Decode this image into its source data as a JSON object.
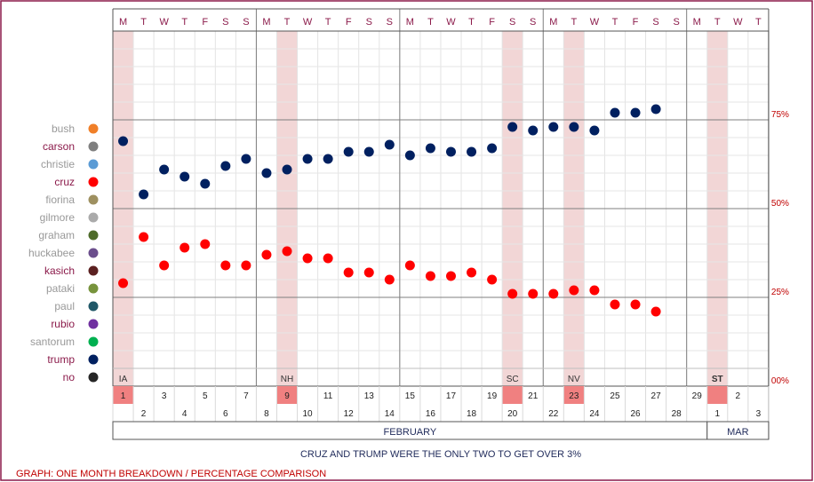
{
  "chart_data": {
    "type": "scatter",
    "title": "",
    "footer_caption": "GRAPH: ONE MONTH BREAKDOWN / PERCENTAGE COMPARISON",
    "subtitle_note": "CRUZ AND TRUMP WERE THE ONLY TWO TO GET OVER 3%",
    "weekday_header": [
      "M",
      "T",
      "W",
      "T",
      "F",
      "S",
      "S",
      "M",
      "T",
      "W",
      "T",
      "F",
      "S",
      "S",
      "M",
      "T",
      "W",
      "T",
      "F",
      "S",
      "S",
      "M",
      "T",
      "W",
      "T",
      "F",
      "S",
      "S",
      "M",
      "T",
      "W",
      "T"
    ],
    "day_numbers": [
      "1",
      "2",
      "3",
      "4",
      "5",
      "6",
      "7",
      "8",
      "9",
      "10",
      "11",
      "12",
      "13",
      "14",
      "15",
      "16",
      "17",
      "18",
      "19",
      "20",
      "21",
      "22",
      "23",
      "24",
      "25",
      "26",
      "27",
      "28",
      "29",
      "1",
      "2",
      "3"
    ],
    "highlight_days": [
      0,
      8,
      19,
      22,
      29
    ],
    "event_labels": [
      {
        "day_index": 0,
        "label": "IA"
      },
      {
        "day_index": 8,
        "label": "NH"
      },
      {
        "day_index": 19,
        "label": "SC"
      },
      {
        "day_index": 22,
        "label": "NV"
      },
      {
        "day_index": 29,
        "label": "ST"
      }
    ],
    "months": [
      {
        "label": "FEBRUARY",
        "start_index": 0,
        "end_index": 28
      },
      {
        "label": "MAR",
        "start_index": 29,
        "end_index": 31
      }
    ],
    "y_ticks": [
      {
        "value": 0,
        "label": "00%"
      },
      {
        "value": 25,
        "label": "25%"
      },
      {
        "value": 50,
        "label": "50%"
      },
      {
        "value": 75,
        "label": "75%"
      }
    ],
    "ylim": [
      0,
      100
    ],
    "grid": true,
    "legend_position": "left",
    "legend": [
      {
        "name": "bush",
        "color": "#f07f28",
        "text_color": "#999999"
      },
      {
        "name": "carson",
        "color": "#7f7f7f",
        "text_color": "#8b1a4a"
      },
      {
        "name": "christie",
        "color": "#5b9bd5",
        "text_color": "#999999"
      },
      {
        "name": "cruz",
        "color": "#ff0000",
        "text_color": "#8b1a4a"
      },
      {
        "name": "fiorina",
        "color": "#9e9060",
        "text_color": "#999999"
      },
      {
        "name": "gilmore",
        "color": "#aaaaaa",
        "text_color": "#999999"
      },
      {
        "name": "graham",
        "color": "#4e6b2a",
        "text_color": "#999999"
      },
      {
        "name": "huckabee",
        "color": "#6b4e8c",
        "text_color": "#999999"
      },
      {
        "name": "kasich",
        "color": "#5b2020",
        "text_color": "#8b1a4a"
      },
      {
        "name": "pataki",
        "color": "#77933c",
        "text_color": "#999999"
      },
      {
        "name": "paul",
        "color": "#215868",
        "text_color": "#999999"
      },
      {
        "name": "rubio",
        "color": "#7030a0",
        "text_color": "#8b1a4a"
      },
      {
        "name": "santorum",
        "color": "#00b050",
        "text_color": "#999999"
      },
      {
        "name": "trump",
        "color": "#002060",
        "text_color": "#8b1a4a"
      },
      {
        "name": "no",
        "color": "#262626",
        "text_color": "#8b1a4a"
      }
    ],
    "series": [
      {
        "name": "trump",
        "color": "#002060",
        "points": [
          [
            0,
            69
          ],
          [
            1,
            54
          ],
          [
            2,
            61
          ],
          [
            3,
            59
          ],
          [
            4,
            57
          ],
          [
            5,
            62
          ],
          [
            6,
            64
          ],
          [
            7,
            60
          ],
          [
            8,
            61
          ],
          [
            9,
            64
          ],
          [
            10,
            64
          ],
          [
            11,
            66
          ],
          [
            12,
            66
          ],
          [
            13,
            68
          ],
          [
            14,
            65
          ],
          [
            15,
            67
          ],
          [
            16,
            66
          ],
          [
            17,
            66
          ],
          [
            18,
            67
          ],
          [
            19,
            73
          ],
          [
            20,
            72
          ],
          [
            21,
            73
          ],
          [
            22,
            73
          ],
          [
            23,
            72
          ],
          [
            24,
            77
          ],
          [
            25,
            77
          ],
          [
            26,
            78
          ]
        ]
      },
      {
        "name": "cruz",
        "color": "#ff0000",
        "points": [
          [
            0,
            29
          ],
          [
            1,
            42
          ],
          [
            2,
            34
          ],
          [
            3,
            39
          ],
          [
            4,
            40
          ],
          [
            5,
            34
          ],
          [
            6,
            34
          ],
          [
            7,
            37
          ],
          [
            8,
            38
          ],
          [
            9,
            36
          ],
          [
            10,
            36
          ],
          [
            11,
            32
          ],
          [
            12,
            32
          ],
          [
            13,
            30
          ],
          [
            14,
            34
          ],
          [
            15,
            31
          ],
          [
            16,
            31
          ],
          [
            17,
            32
          ],
          [
            18,
            30
          ],
          [
            19,
            26
          ],
          [
            20,
            26
          ],
          [
            21,
            26
          ],
          [
            22,
            27
          ],
          [
            23,
            27
          ],
          [
            24,
            23
          ],
          [
            25,
            23
          ],
          [
            26,
            21
          ]
        ]
      }
    ]
  }
}
